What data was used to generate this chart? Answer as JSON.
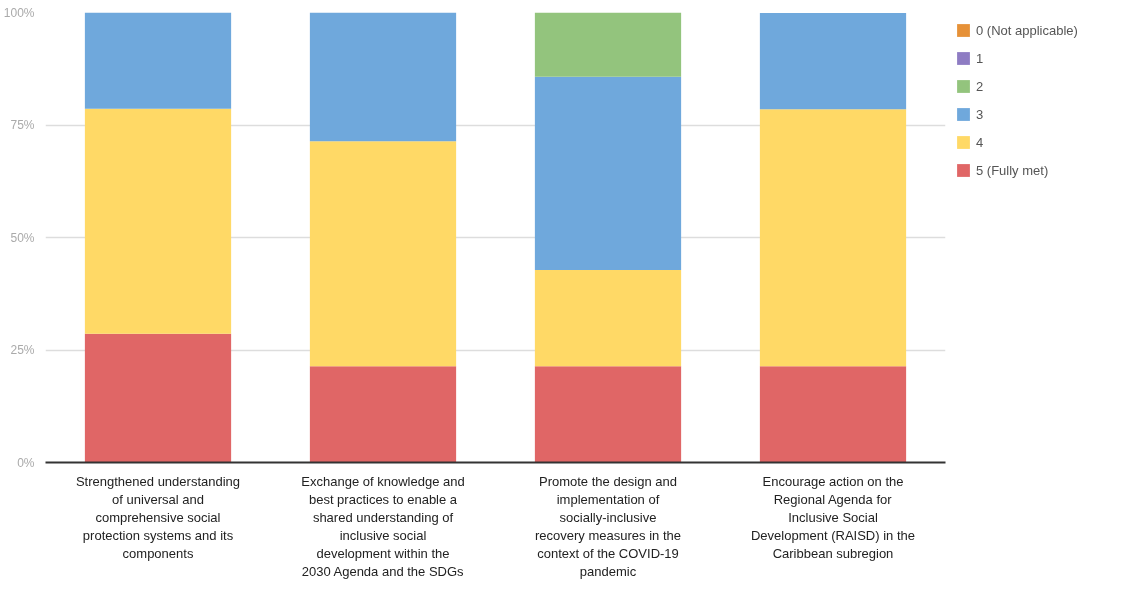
{
  "chart_data": {
    "type": "bar",
    "stacked": true,
    "categories": [
      "Strengthened understanding of universal and comprehensive social protection systems and its components",
      "Exchange of knowledge and best practices to enable a shared understanding of inclusive social development within the 2030 Agenda and the SDGs",
      "Promote the design and implementation of socially-inclusive recovery measures in the context of the COVID-19 pandemic",
      "Encourage action on the Regional Agenda for Inclusive Social Development (RAISD) in the Caribbean subregion"
    ],
    "series": [
      {
        "name": "5 (Fully met)",
        "color": "#e06666",
        "values": [
          28.6,
          21.4,
          21.4,
          21.4
        ]
      },
      {
        "name": "4",
        "color": "#ffd966",
        "values": [
          50,
          50,
          21.4,
          57.1
        ]
      },
      {
        "name": "3",
        "color": "#6fa8dc",
        "values": [
          21.4,
          28.6,
          42.9,
          21.4
        ]
      },
      {
        "name": "2",
        "color": "#93c47d",
        "values": [
          0,
          0,
          14.3,
          0
        ]
      },
      {
        "name": "1",
        "color": "#8e7cc3",
        "values": [
          0,
          0,
          0,
          0
        ]
      },
      {
        "name": "0 (Not applicable)",
        "color": "#e69138",
        "values": [
          0,
          0,
          0,
          0
        ]
      }
    ],
    "ylim": [
      0,
      100
    ],
    "yticks": [
      {
        "value": 0,
        "label": "0%"
      },
      {
        "value": 25,
        "label": "25%"
      },
      {
        "value": 50,
        "label": "50%"
      },
      {
        "value": 75,
        "label": "75%"
      },
      {
        "value": 100,
        "label": "100%"
      }
    ],
    "grid": "y",
    "legend": "right"
  }
}
